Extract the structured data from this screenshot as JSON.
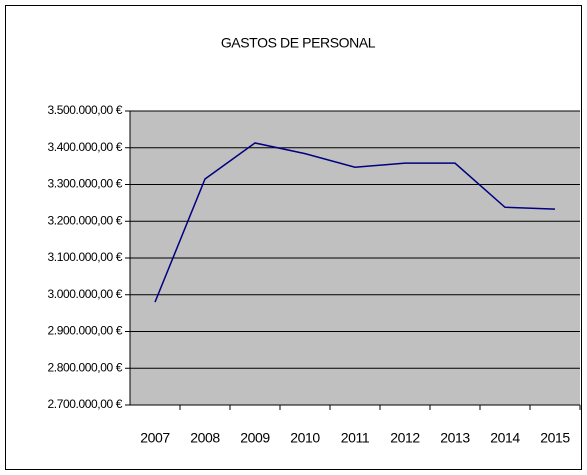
{
  "chart_data": {
    "type": "line",
    "title": "GASTOS DE PERSONAL",
    "categories": [
      "2007",
      "2008",
      "2009",
      "2010",
      "2011",
      "2012",
      "2013",
      "2014",
      "2015"
    ],
    "series": [
      {
        "name": "GASTOS DE PERSONAL",
        "color": "#000080",
        "values": [
          2980000,
          3315000,
          3413000,
          3384000,
          3347000,
          3358000,
          3358000,
          3238000,
          3233000
        ]
      }
    ],
    "ylim": [
      2700000,
      3500000
    ],
    "yticks": [
      {
        "value": 2700000,
        "label": "2.700.000,00 €"
      },
      {
        "value": 2800000,
        "label": "2.800.000,00 €"
      },
      {
        "value": 2900000,
        "label": "2.900.000,00 €"
      },
      {
        "value": 3000000,
        "label": "3.000.000,00 €"
      },
      {
        "value": 3100000,
        "label": "3.100.000,00 €"
      },
      {
        "value": 3200000,
        "label": "3.200.000,00 €"
      },
      {
        "value": 3300000,
        "label": "3.300.000,00 €"
      },
      {
        "value": 3400000,
        "label": "3.400.000,00 €"
      },
      {
        "value": 3500000,
        "label": "3.500.000,00 €"
      }
    ],
    "grid": true,
    "plot_background": "#c0c0c0"
  }
}
